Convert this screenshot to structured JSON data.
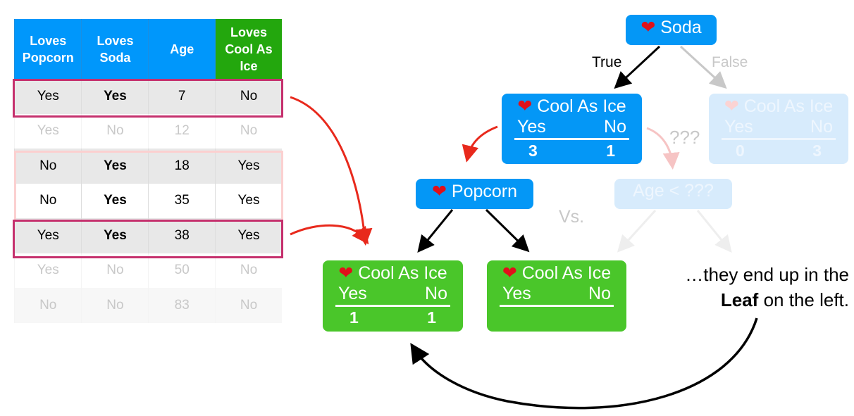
{
  "table": {
    "headers": [
      "Loves Popcorn",
      "Loves Soda",
      "Age",
      "Loves Cool As Ice"
    ],
    "rows": [
      [
        "Yes",
        "Yes",
        "7",
        "No"
      ],
      [
        "Yes",
        "No",
        "12",
        "No"
      ],
      [
        "No",
        "Yes",
        "18",
        "Yes"
      ],
      [
        "No",
        "Yes",
        "35",
        "Yes"
      ],
      [
        "Yes",
        "Yes",
        "38",
        "Yes"
      ],
      [
        "Yes",
        "No",
        "50",
        "No"
      ],
      [
        "No",
        "No",
        "83",
        "No"
      ]
    ]
  },
  "tree": {
    "root": {
      "icon": "heart-icon",
      "label": "Soda"
    },
    "true_label": "True",
    "false_label": "False",
    "left": {
      "icon": "heart-icon",
      "label": "Cool As Ice",
      "yes": "Yes",
      "no": "No",
      "yes_count": "3",
      "no_count": "1"
    },
    "right": {
      "icon": "heart-icon",
      "label": "Cool As Ice",
      "yes": "Yes",
      "no": "No",
      "yes_count": "0",
      "no_count": "3"
    },
    "question": "???",
    "popcorn": {
      "icon": "heart-icon",
      "label": "Popcorn"
    },
    "age_node": {
      "label": "Age < ???"
    },
    "vs": "Vs.",
    "leaf_left": {
      "icon": "heart-icon",
      "label": "Cool As Ice",
      "yes": "Yes",
      "no": "No",
      "yes_count": "1",
      "no_count": "1"
    },
    "leaf_right": {
      "icon": "heart-icon",
      "label": "Cool As Ice",
      "yes": "Yes",
      "no": "No"
    }
  },
  "caption": {
    "line1": "…they end up in the",
    "bold": "Leaf",
    "line2_rest": " on the left."
  },
  "colors": {
    "blue": "#0497f6",
    "green": "#4ac62a",
    "highlight": "#c5306d",
    "arrow_red": "#e8291c"
  }
}
